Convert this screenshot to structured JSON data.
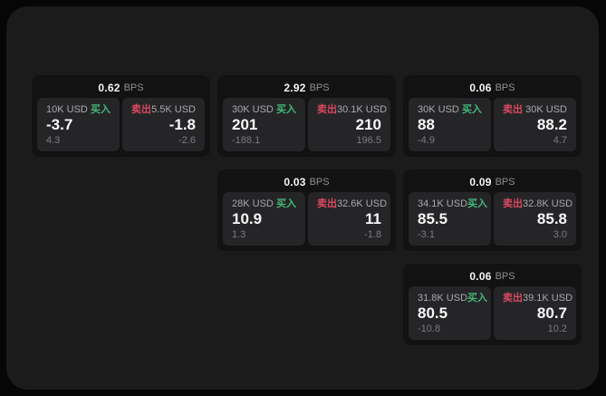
{
  "colors": {
    "buy_green": "#44b878",
    "sell_red": "#d9495f"
  },
  "labels": {
    "buy": "买入",
    "sell": "卖出",
    "bps_unit": "BPS"
  },
  "cards": [
    {
      "col": 1,
      "row": 1,
      "bps": "0.62",
      "buy": {
        "size": "10K USD",
        "price": "-3.7",
        "delta": "4.3"
      },
      "sell": {
        "size": "5.5K USD",
        "price": "-1.8",
        "delta": "-2.6"
      }
    },
    {
      "col": 2,
      "row": 1,
      "bps": "2.92",
      "buy": {
        "size": "30K USD",
        "price": "201",
        "delta": "-188.1"
      },
      "sell": {
        "size": "30.1K USD",
        "price": "210",
        "delta": "196.5"
      }
    },
    {
      "col": 3,
      "row": 1,
      "bps": "0.06",
      "buy": {
        "size": "30K USD",
        "price": "88",
        "delta": "-4.9"
      },
      "sell": {
        "size": "30K USD",
        "price": "88.2",
        "delta": "4.7"
      }
    },
    {
      "col": 2,
      "row": 2,
      "bps": "0.03",
      "buy": {
        "size": "28K USD",
        "price": "10.9",
        "delta": "1.3"
      },
      "sell": {
        "size": "32.6K USD",
        "price": "11",
        "delta": "-1.8"
      }
    },
    {
      "col": 3,
      "row": 2,
      "bps": "0.09",
      "buy": {
        "size": "34.1K USD",
        "price": "85.5",
        "delta": "-3.1"
      },
      "sell": {
        "size": "32.8K USD",
        "price": "85.8",
        "delta": "3.0"
      }
    },
    {
      "col": 3,
      "row": 3,
      "bps": "0.06",
      "buy": {
        "size": "31.8K USD",
        "price": "80.5",
        "delta": "-10.8"
      },
      "sell": {
        "size": "39.1K USD",
        "price": "80.7",
        "delta": "10.2"
      }
    }
  ]
}
